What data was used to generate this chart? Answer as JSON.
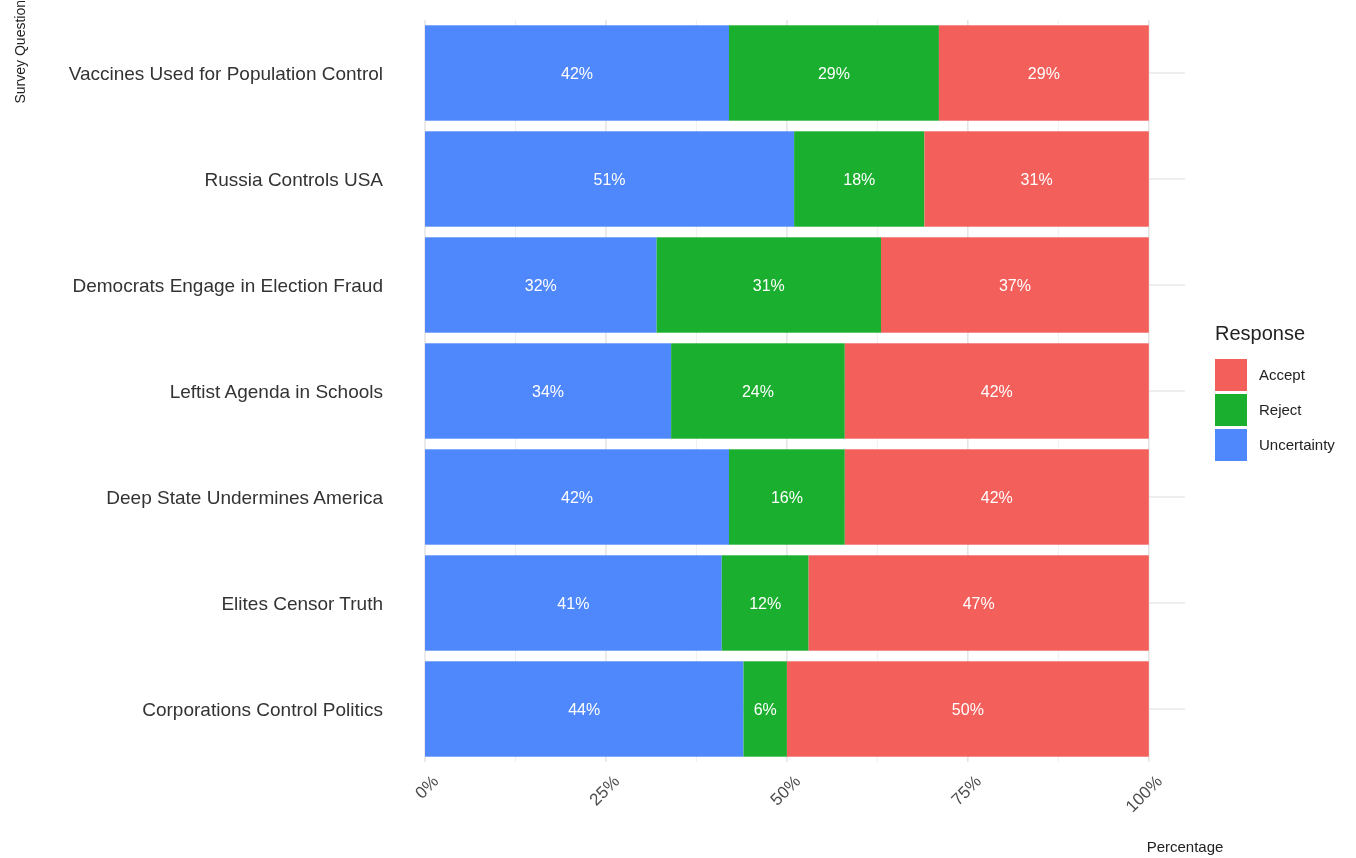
{
  "chart_data": {
    "type": "bar",
    "orientation": "horizontal",
    "stacked": true,
    "categories": [
      "Vaccines Used for Population Control",
      "Russia Controls USA",
      "Democrats Engage in Election Fraud",
      "Leftist Agenda in Schools",
      "Deep State Undermines America",
      "Elites Censor Truth",
      "Corporations Control Politics"
    ],
    "series": [
      {
        "name": "Uncertainty",
        "color": "#4f87fc",
        "values": [
          42,
          51,
          32,
          34,
          42,
          41,
          44
        ],
        "value_labels": [
          "42%",
          "51%",
          "32%",
          "34%",
          "42%",
          "41%",
          "44%"
        ]
      },
      {
        "name": "Reject",
        "color": "#1aaf2e",
        "values": [
          29,
          18,
          31,
          24,
          16,
          12,
          6
        ],
        "value_labels": [
          "29%",
          "18%",
          "31%",
          "24%",
          "16%",
          "12%",
          "6%"
        ]
      },
      {
        "name": "Accept",
        "color": "#f35f5a",
        "values": [
          29,
          31,
          37,
          42,
          42,
          47,
          50
        ],
        "value_labels": [
          "29%",
          "31%",
          "37%",
          "42%",
          "42%",
          "47%",
          "50%"
        ]
      }
    ],
    "xlim": [
      0,
      105
    ],
    "xticks": [
      {
        "value": 0,
        "label": "0%"
      },
      {
        "value": 25,
        "label": "25%"
      },
      {
        "value": 50,
        "label": "50%"
      },
      {
        "value": 75,
        "label": "75%"
      },
      {
        "value": 100,
        "label": "100%"
      }
    ],
    "xlabel": "Percentage",
    "ylabel": "Survey Question",
    "legend_title": "Response",
    "legend": "right",
    "grid": true
  }
}
